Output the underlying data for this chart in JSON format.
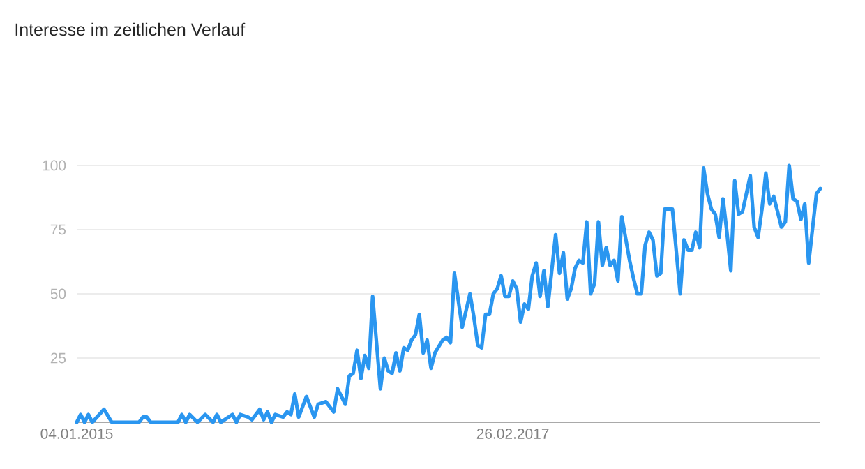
{
  "chart_data": {
    "type": "line",
    "title": "Interesse im zeitlichen Verlauf",
    "x": [
      "2015-01-04",
      "2015-01-11",
      "2015-01-18",
      "2015-01-25",
      "2015-02-01",
      "2015-02-22",
      "2015-03-08",
      "2015-04-26",
      "2015-05-03",
      "2015-05-10",
      "2015-05-17",
      "2015-07-05",
      "2015-07-12",
      "2015-07-19",
      "2015-07-26",
      "2015-08-09",
      "2015-08-23",
      "2015-09-06",
      "2015-09-13",
      "2015-09-20",
      "2015-10-11",
      "2015-10-18",
      "2015-10-25",
      "2015-11-08",
      "2015-11-15",
      "2015-11-29",
      "2015-12-06",
      "2015-12-13",
      "2015-12-20",
      "2015-12-27",
      "2016-01-10",
      "2016-01-17",
      "2016-01-24",
      "2016-01-31",
      "2016-02-07",
      "2016-02-21",
      "2016-03-06",
      "2016-03-13",
      "2016-03-27",
      "2016-04-10",
      "2016-04-17",
      "2016-05-01",
      "2016-05-08",
      "2016-05-15",
      "2016-05-22",
      "2016-05-29",
      "2016-06-05",
      "2016-06-12",
      "2016-06-19",
      "2016-07-03",
      "2016-07-10",
      "2016-07-17",
      "2016-07-24",
      "2016-07-31",
      "2016-08-07",
      "2016-08-14",
      "2016-08-21",
      "2016-08-28",
      "2016-09-04",
      "2016-09-11",
      "2016-09-18",
      "2016-09-25",
      "2016-10-02",
      "2016-10-09",
      "2016-10-23",
      "2016-10-30",
      "2016-11-06",
      "2016-11-13",
      "2016-11-27",
      "2016-12-11",
      "2016-12-18",
      "2016-12-25",
      "2017-01-01",
      "2017-01-08",
      "2017-01-15",
      "2017-01-22",
      "2017-01-29",
      "2017-02-05",
      "2017-02-12",
      "2017-02-19",
      "2017-02-26",
      "2017-03-05",
      "2017-03-12",
      "2017-03-19",
      "2017-03-26",
      "2017-04-02",
      "2017-04-09",
      "2017-04-16",
      "2017-04-23",
      "2017-04-30",
      "2017-05-14",
      "2017-05-21",
      "2017-05-28",
      "2017-06-04",
      "2017-06-11",
      "2017-06-18",
      "2017-06-25",
      "2017-07-02",
      "2017-07-09",
      "2017-07-16",
      "2017-07-23",
      "2017-07-30",
      "2017-08-06",
      "2017-08-13",
      "2017-08-20",
      "2017-08-27",
      "2017-09-03",
      "2017-09-10",
      "2017-09-24",
      "2017-10-01",
      "2017-10-08",
      "2017-10-15",
      "2017-10-22",
      "2017-10-29",
      "2017-11-05",
      "2017-11-12",
      "2017-11-19",
      "2017-11-26",
      "2017-12-10",
      "2017-12-24",
      "2017-12-31",
      "2018-01-07",
      "2018-01-14",
      "2018-01-21",
      "2018-01-28",
      "2018-02-04",
      "2018-02-11",
      "2018-02-18",
      "2018-02-25",
      "2018-03-04",
      "2018-03-11",
      "2018-03-18",
      "2018-03-25",
      "2018-04-01",
      "2018-04-08",
      "2018-04-15",
      "2018-04-29",
      "2018-05-06",
      "2018-05-13",
      "2018-05-20",
      "2018-05-27",
      "2018-06-03",
      "2018-06-10",
      "2018-06-24",
      "2018-07-01",
      "2018-07-08",
      "2018-07-15",
      "2018-07-22",
      "2018-07-29",
      "2018-08-05",
      "2018-08-12",
      "2018-08-26",
      "2018-09-02"
    ],
    "series": [
      {
        "color": "#2a96f0",
        "values": [
          0,
          3,
          0,
          3,
          0,
          5,
          0,
          0,
          2,
          2,
          0,
          0,
          3,
          0,
          3,
          0,
          3,
          0,
          3,
          0,
          3,
          0,
          3,
          2,
          1,
          5,
          1,
          4,
          0,
          3,
          2,
          4,
          3,
          11,
          2,
          10,
          2,
          7,
          8,
          4,
          13,
          7,
          18,
          19,
          28,
          17,
          26,
          21,
          49,
          13,
          25,
          20,
          19,
          27,
          20,
          29,
          28,
          32,
          34,
          42,
          27,
          32,
          21,
          27,
          32,
          33,
          31,
          58,
          37,
          50,
          41,
          30,
          29,
          42,
          42,
          50,
          52,
          57,
          49,
          49,
          55,
          52,
          39,
          46,
          44,
          57,
          62,
          49,
          59,
          45,
          73,
          58,
          66,
          48,
          52,
          60,
          63,
          62,
          78,
          50,
          54,
          78,
          61,
          68,
          61,
          63,
          55,
          80,
          63,
          56,
          50,
          50,
          69,
          74,
          71,
          57,
          58,
          83,
          83,
          50,
          71,
          67,
          67,
          74,
          68,
          99,
          89,
          83,
          81,
          72,
          87,
          74,
          59,
          94,
          81,
          82,
          96,
          76,
          72,
          83,
          97,
          85,
          88,
          76,
          78,
          100,
          87,
          86,
          79,
          85,
          62,
          89,
          91
        ]
      }
    ],
    "xlim": [
      "2015-01-04",
      "2018-09-02"
    ],
    "xticks": [
      {
        "value": "2015-01-04",
        "label": "04.01.2015"
      },
      {
        "value": "2017-02-26",
        "label": "26.02.2017"
      }
    ],
    "ylim": [
      0,
      100
    ],
    "yticks": [
      25,
      50,
      75,
      100
    ],
    "grid": "y"
  }
}
